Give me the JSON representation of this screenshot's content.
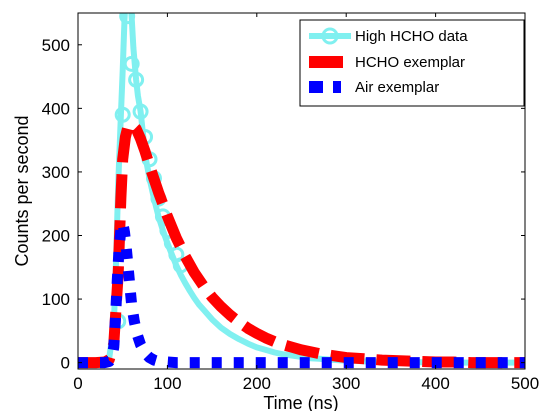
{
  "chart_data": {
    "type": "line",
    "title": "",
    "xlabel": "Time (ns)",
    "ylabel": "Counts per second",
    "xlim": [
      0,
      500
    ],
    "ylim": [
      -10,
      550
    ],
    "xticks": [
      0,
      100,
      200,
      300,
      400,
      500
    ],
    "yticks": [
      0,
      100,
      200,
      300,
      400,
      500
    ],
    "grid": false,
    "legend_position": "top-right",
    "series": [
      {
        "name": "High HCHO data",
        "style": "solid-line-circle-markers",
        "color": "#80F0F0",
        "x": [
          0,
          5,
          10,
          15,
          20,
          25,
          30,
          35,
          40,
          42,
          45,
          48,
          50,
          52,
          55,
          57,
          60,
          62,
          65,
          67,
          70,
          73,
          76,
          80,
          85,
          90,
          95,
          100,
          105,
          110,
          115,
          120,
          125,
          130,
          135,
          140,
          150,
          160,
          170,
          180,
          190,
          200,
          210,
          220,
          230,
          240,
          250,
          260,
          270,
          280,
          290,
          300,
          310,
          320,
          330,
          340,
          350,
          360,
          370,
          380,
          390,
          400,
          410,
          420,
          430,
          440,
          450,
          460,
          470,
          480,
          490,
          500
        ],
        "y": [
          0,
          0,
          0,
          0,
          0,
          0,
          2,
          8,
          60,
          130,
          280,
          390,
          460,
          540,
          620,
          600,
          545,
          495,
          445,
          420,
          395,
          355,
          320,
          290,
          258,
          230,
          208,
          188,
          170,
          153,
          138,
          125,
          113,
          102,
          92,
          84,
          68,
          55,
          45,
          37,
          30,
          24,
          20,
          16,
          13,
          11,
          9,
          7,
          6,
          5,
          4,
          3,
          3,
          2,
          2,
          1,
          1,
          1,
          1,
          1,
          0,
          0,
          0,
          0,
          0,
          0,
          0,
          0,
          0,
          0,
          0,
          0
        ],
        "markers_x": [
          45,
          50,
          55,
          60,
          65,
          70,
          75,
          80,
          85,
          90,
          95,
          100,
          105,
          110,
          115
        ],
        "markers_y": [
          65,
          390,
          545,
          470,
          445,
          395,
          355,
          320,
          290,
          258,
          230,
          208,
          188,
          170,
          153
        ]
      },
      {
        "name": "HCHO exemplar",
        "style": "thick-dashed-line",
        "color": "#FF0000",
        "x": [
          0,
          10,
          20,
          30,
          35,
          40,
          45,
          48,
          50,
          53,
          56,
          60,
          65,
          70,
          75,
          80,
          90,
          100,
          110,
          120,
          130,
          140,
          150,
          160,
          170,
          180,
          190,
          200,
          210,
          220,
          230,
          240,
          250,
          260,
          270,
          280,
          290,
          300,
          320,
          340,
          360,
          380,
          400,
          420,
          440,
          460,
          480,
          500
        ],
        "y": [
          0,
          0,
          0,
          1,
          5,
          30,
          140,
          260,
          320,
          355,
          372,
          375,
          368,
          352,
          332,
          310,
          268,
          230,
          196,
          167,
          142,
          121,
          103,
          88,
          75,
          64,
          54,
          46,
          39,
          33,
          28,
          24,
          20,
          17,
          14,
          12,
          10,
          8,
          6,
          4,
          3,
          2,
          1,
          1,
          0,
          0,
          0,
          0
        ]
      },
      {
        "name": "Air exemplar",
        "style": "thick-dashed-line",
        "color": "#0000FF",
        "x": [
          0,
          10,
          20,
          30,
          35,
          38,
          40,
          42,
          44,
          46,
          48,
          50,
          52,
          54,
          56,
          58,
          60,
          63,
          66,
          70,
          75,
          80,
          85,
          90,
          100,
          110,
          120,
          150,
          200,
          250,
          300,
          350,
          400,
          450,
          500
        ],
        "y": [
          0,
          0,
          0,
          0,
          2,
          8,
          25,
          70,
          130,
          180,
          210,
          220,
          205,
          180,
          150,
          120,
          92,
          65,
          45,
          28,
          15,
          8,
          4,
          2,
          1,
          0,
          0,
          0,
          0,
          0,
          0,
          0,
          0,
          0,
          0
        ]
      }
    ]
  }
}
